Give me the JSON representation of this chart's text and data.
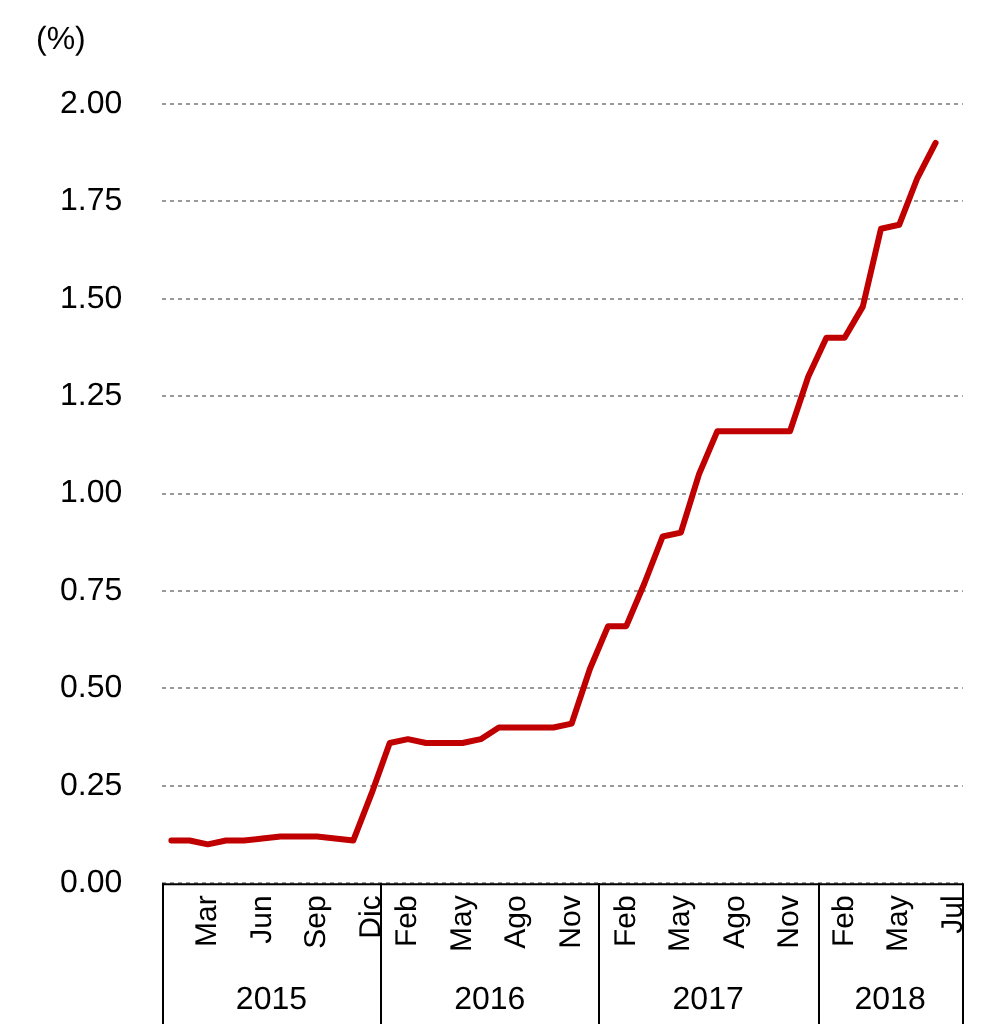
{
  "chart_data": {
    "type": "line",
    "ylabel": "(%)",
    "categories": [
      null,
      null,
      "Mar",
      null,
      null,
      "Jun",
      null,
      null,
      "Sep",
      null,
      null,
      "Dic",
      null,
      "Feb",
      null,
      null,
      "May",
      null,
      null,
      "Ago",
      null,
      null,
      "Nov",
      null,
      null,
      "Feb",
      null,
      null,
      "May",
      null,
      null,
      "Ago",
      null,
      null,
      "Nov",
      null,
      null,
      "Feb",
      null,
      null,
      "May",
      null,
      null,
      "Jul"
    ],
    "series": [
      {
        "color": "#c00000",
        "values": [
          0.11,
          0.11,
          0.1,
          0.11,
          0.11,
          0.115,
          0.12,
          0.12,
          0.12,
          0.115,
          0.11,
          0.23,
          0.36,
          0.37,
          0.36,
          0.36,
          0.36,
          0.37,
          0.4,
          0.4,
          0.4,
          0.4,
          0.41,
          0.55,
          0.66,
          0.66,
          0.77,
          0.89,
          0.9,
          1.05,
          1.16,
          1.16,
          1.16,
          1.16,
          1.16,
          1.3,
          1.4,
          1.4,
          1.48,
          1.68,
          1.69,
          1.81,
          1.9,
          null
        ]
      }
    ],
    "annotations": [
      "2015",
      "2016",
      "2017",
      "2018"
    ],
    "ylim": [
      0,
      2
    ],
    "yticks": [
      {
        "value": 0,
        "label": "0.00"
      },
      0.25,
      {
        "value": 0.5,
        "label": "0.50"
      },
      0.75,
      {
        "value": 1,
        "label": "1.00"
      },
      1.25,
      {
        "value": 1.5,
        "label": "1.50"
      },
      1.75,
      {
        "value": 2,
        "label": "2.00"
      }
    ],
    "grid": "y",
    "legend": false,
    "marker": "none",
    "line_style": "solid"
  }
}
